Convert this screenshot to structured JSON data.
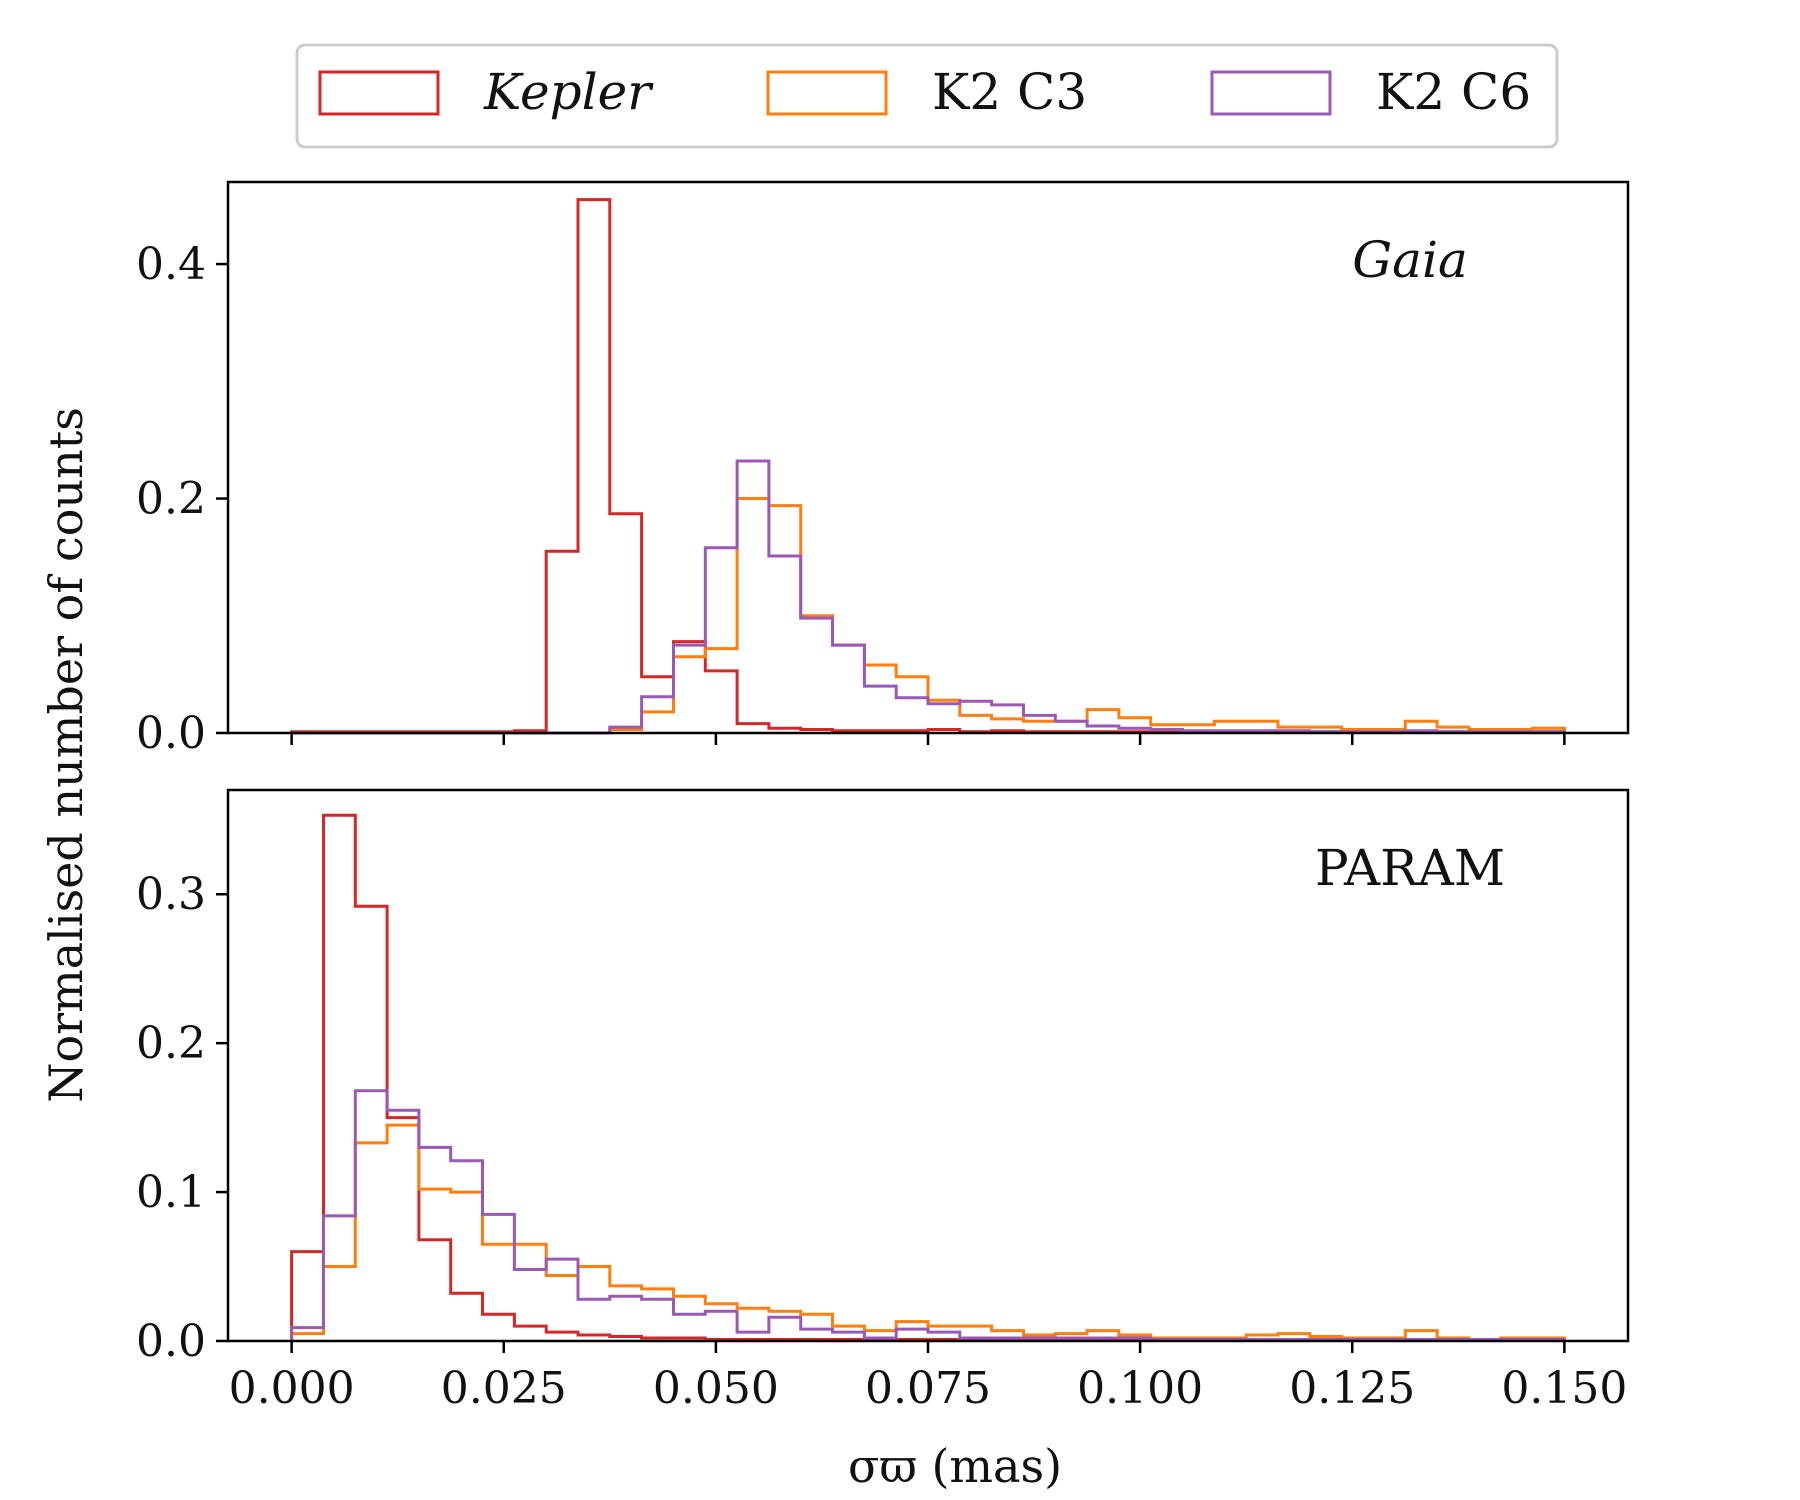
{
  "chart_data": {
    "type": "histogram",
    "shared_xlabel": "σϖ (mas)",
    "shared_ylabel": "Normalised number of counts",
    "xlim": [
      -0.0075,
      0.1575
    ],
    "x_ticks": [
      0.0,
      0.025,
      0.05,
      0.075,
      0.1,
      0.125,
      0.15
    ],
    "x_tick_labels": [
      "0.000",
      "0.025",
      "0.050",
      "0.075",
      "0.100",
      "0.125",
      "0.150"
    ],
    "bin_width": 0.00375,
    "x_start": 0.0,
    "legend": {
      "placement": "top-center (outside)",
      "entries": [
        {
          "label": "Kepler",
          "color": "#d62728",
          "italic": true
        },
        {
          "label": "K2 C3",
          "color": "#ff7f0e",
          "italic": false
        },
        {
          "label": "K2 C6",
          "color": "#9b59b6",
          "italic": false
        }
      ]
    },
    "panels": [
      {
        "label": "Gaia",
        "label_italic": true,
        "ylim": [
          0,
          0.47
        ],
        "y_ticks": [
          0.0,
          0.2,
          0.4
        ],
        "y_tick_labels": [
          "0.0",
          "0.2",
          "0.4"
        ],
        "series": [
          {
            "name": "Kepler",
            "color": "#d62728",
            "values": [
              0.001,
              0.001,
              0.001,
              0.001,
              0.001,
              0.001,
              0.001,
              0.002,
              0.155,
              0.455,
              0.187,
              0.048,
              0.078,
              0.053,
              0.008,
              0.004,
              0.003,
              0.002,
              0.002,
              0.002,
              0.003,
              0.001,
              0.002,
              0.001,
              0.001,
              0.001,
              0.001,
              0.001,
              0.001,
              0.001,
              0.001,
              0.001,
              0.001,
              0.001,
              0.001,
              0.001,
              0.001,
              0.001,
              0.001,
              0.001
            ]
          },
          {
            "name": "K2 C3",
            "color": "#ff7f0e",
            "values": [
              0,
              0,
              0,
              0,
              0,
              0,
              0,
              0,
              0,
              0,
              0.003,
              0.018,
              0.065,
              0.072,
              0.2,
              0.194,
              0.1,
              0.075,
              0.058,
              0.048,
              0.028,
              0.015,
              0.012,
              0.01,
              0.01,
              0.02,
              0.013,
              0.007,
              0.007,
              0.01,
              0.01,
              0.005,
              0.005,
              0.003,
              0.003,
              0.01,
              0.005,
              0.003,
              0.003,
              0.004
            ]
          },
          {
            "name": "K2 C6",
            "color": "#9b59b6",
            "values": [
              0,
              0,
              0,
              0,
              0,
              0,
              0,
              0,
              0,
              0,
              0.005,
              0.031,
              0.075,
              0.158,
              0.232,
              0.151,
              0.098,
              0.075,
              0.04,
              0.03,
              0.025,
              0.027,
              0.024,
              0.015,
              0.01,
              0.006,
              0.004,
              0.003,
              0.002,
              0.002,
              0.002,
              0.002,
              0.001,
              0.001,
              0.001,
              0.002,
              0.001,
              0.001,
              0.001,
              0.001
            ]
          }
        ]
      },
      {
        "label": "PARAM",
        "label_italic": false,
        "ylim": [
          0,
          0.37
        ],
        "y_ticks": [
          0.0,
          0.1,
          0.2,
          0.3
        ],
        "y_tick_labels": [
          "0.0",
          "0.1",
          "0.2",
          "0.3"
        ],
        "series": [
          {
            "name": "Kepler",
            "color": "#d62728",
            "values": [
              0.06,
              0.353,
              0.292,
              0.15,
              0.068,
              0.032,
              0.018,
              0.01,
              0.006,
              0.004,
              0.003,
              0.002,
              0.002,
              0.001,
              0.001,
              0.001,
              0.001,
              0.001,
              0.001,
              0.001,
              0.001,
              0.001,
              0.001,
              0.001,
              0.001,
              0.001,
              0.001,
              0.001,
              0.001,
              0.001,
              0.001,
              0.001,
              0.001,
              0.001,
              0.001,
              0.001,
              0.001,
              0.001,
              0.001,
              0.001
            ]
          },
          {
            "name": "K2 C3",
            "color": "#ff7f0e",
            "values": [
              0.005,
              0.05,
              0.133,
              0.145,
              0.102,
              0.1,
              0.065,
              0.065,
              0.044,
              0.05,
              0.037,
              0.035,
              0.03,
              0.025,
              0.022,
              0.02,
              0.018,
              0.01,
              0.007,
              0.013,
              0.01,
              0.01,
              0.007,
              0.004,
              0.005,
              0.007,
              0.004,
              0.002,
              0.002,
              0.002,
              0.004,
              0.005,
              0.003,
              0.002,
              0.002,
              0.007,
              0.002,
              0.001,
              0.002,
              0.002
            ]
          },
          {
            "name": "K2 C6",
            "color": "#9b59b6",
            "values": [
              0.009,
              0.084,
              0.168,
              0.155,
              0.13,
              0.121,
              0.085,
              0.048,
              0.055,
              0.028,
              0.03,
              0.028,
              0.018,
              0.02,
              0.006,
              0.016,
              0.008,
              0.006,
              0.002,
              0.008,
              0.006,
              0.002,
              0.002,
              0.002,
              0.002,
              0.002,
              0.002,
              0.001,
              0.001,
              0.001,
              0.001,
              0.001,
              0.001,
              0.001,
              0.001,
              0.001,
              0.001,
              0.001,
              0.001,
              0.001
            ]
          }
        ]
      }
    ]
  }
}
